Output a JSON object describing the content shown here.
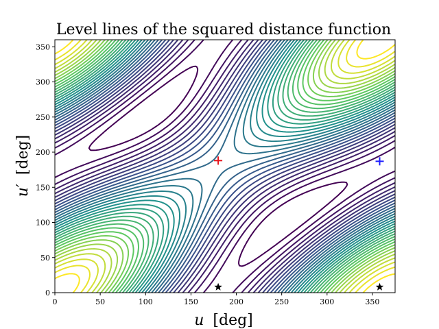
{
  "chart_data": {
    "type": "contour",
    "title": "Level lines of the squared distance function",
    "xlabel_var": "u",
    "xlabel_unit": "[deg]",
    "ylabel_var": "u′",
    "ylabel_unit": "[deg]",
    "xlim": [
      0,
      375
    ],
    "ylim": [
      0,
      360
    ],
    "xticks": [
      0,
      50,
      100,
      150,
      200,
      250,
      300,
      350
    ],
    "yticks": [
      0,
      50,
      100,
      150,
      200,
      250,
      300,
      350
    ],
    "grid": false,
    "colormap": [
      "#440154",
      "#3b528b",
      "#21918c",
      "#5ec962",
      "#fde725"
    ],
    "markers": [
      {
        "x": 180,
        "y": 188,
        "symbol": "plus",
        "color": "#e8141c"
      },
      {
        "x": 358,
        "y": 187,
        "symbol": "plus",
        "color": "#1f1fff"
      },
      {
        "x": 180,
        "y": 8,
        "symbol": "star",
        "color": "#000000"
      },
      {
        "x": 358,
        "y": 8,
        "symbol": "star",
        "color": "#000000"
      }
    ]
  }
}
